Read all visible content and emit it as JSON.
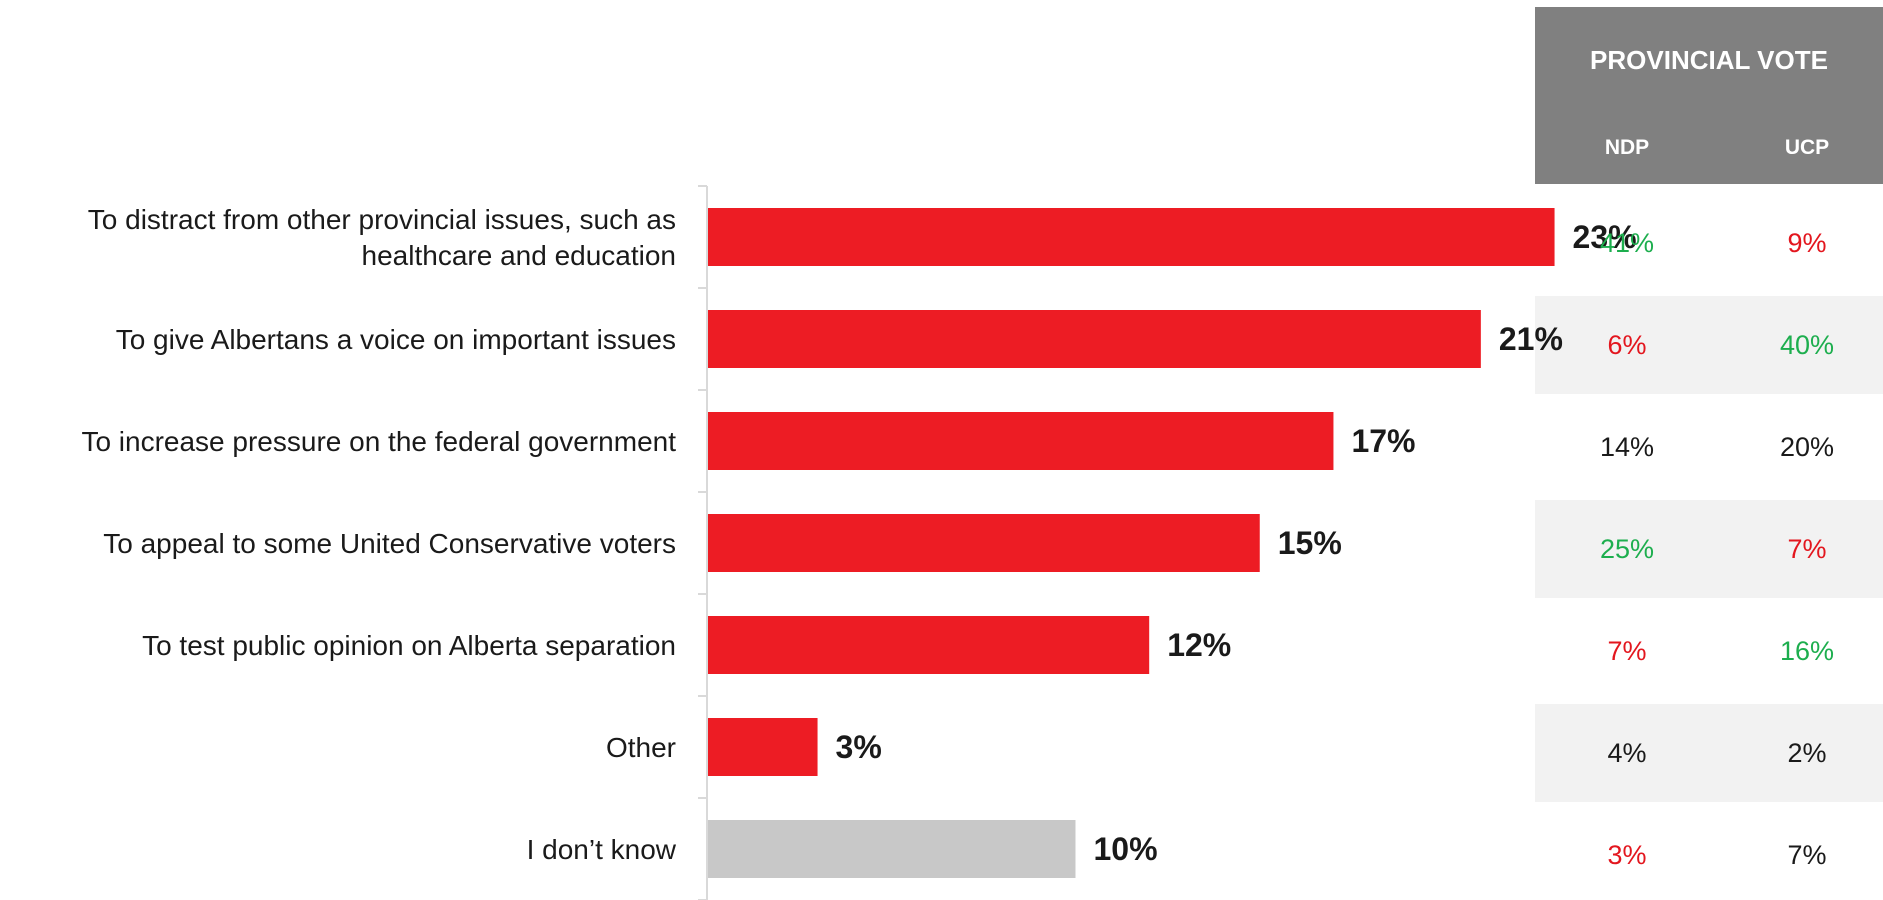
{
  "chart_data": {
    "type": "bar",
    "orientation": "horizontal",
    "categories": [
      "To distract from other provincial issues, such as healthcare and education",
      "To give Albertans a voice on important issues",
      "To increase pressure on the federal government",
      "To appeal to some United Conservative voters",
      "To test public opinion on Alberta separation",
      "Other",
      "I don’t know"
    ],
    "category_label_lines": [
      [
        "To distract from other provincial issues, such as",
        "healthcare and education"
      ],
      [
        "To give Albertans a voice on important issues"
      ],
      [
        "To increase pressure on the federal government"
      ],
      [
        "To appeal to some United Conservative voters"
      ],
      [
        "To test public opinion on Alberta separation"
      ],
      [
        "Other"
      ],
      [
        "I don’t know"
      ]
    ],
    "values": [
      23,
      21,
      17,
      15,
      12,
      3,
      10
    ],
    "value_labels": [
      "23%",
      "21%",
      "17%",
      "15%",
      "12%",
      "3%",
      "10%"
    ],
    "xlim": [
      0,
      23
    ],
    "grid": false,
    "colors": {
      "bar": "#ED1C24",
      "bar_dont_know": "#C8C8C8",
      "axis": "#D9D9D9",
      "header_bg": "#808080",
      "row_shade": "#F2F2F2",
      "green": "#1DAE4E",
      "red": "#E3161E",
      "neutral": "#1A1A1A"
    },
    "table": {
      "title": "PROVINCIAL VOTE",
      "columns": [
        "NDP",
        "UCP"
      ],
      "rows": [
        [
          {
            "text": "41%",
            "color": "green"
          },
          {
            "text": "9%",
            "color": "red"
          }
        ],
        [
          {
            "text": "6%",
            "color": "red"
          },
          {
            "text": "40%",
            "color": "green"
          }
        ],
        [
          {
            "text": "14%",
            "color": "neutral"
          },
          {
            "text": "20%",
            "color": "neutral"
          }
        ],
        [
          {
            "text": "25%",
            "color": "green"
          },
          {
            "text": "7%",
            "color": "red"
          }
        ],
        [
          {
            "text": "7%",
            "color": "red"
          },
          {
            "text": "16%",
            "color": "green"
          }
        ],
        [
          {
            "text": "4%",
            "color": "neutral"
          },
          {
            "text": "2%",
            "color": "neutral"
          }
        ],
        [
          {
            "text": "3%",
            "color": "red"
          },
          {
            "text": "7%",
            "color": "neutral"
          }
        ]
      ],
      "shaded_rows": [
        1,
        3,
        5
      ]
    }
  }
}
